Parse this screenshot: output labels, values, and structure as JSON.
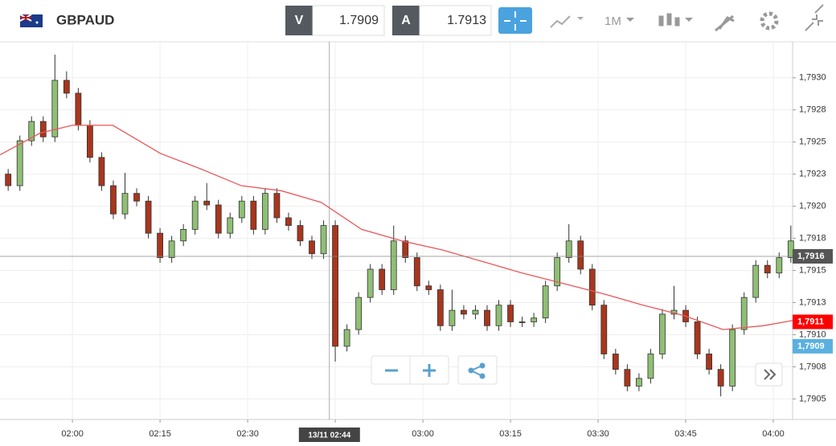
{
  "toolbar": {
    "symbol": "GBPAUD",
    "bid_tag": "V",
    "bid": "1.7909",
    "ask_tag": "A",
    "ask": "1.7913",
    "interval": "1M"
  },
  "chart_data": {
    "type": "candlestick",
    "x": [
      109,
      111,
      113,
      115,
      117,
      119,
      121,
      123,
      125,
      127,
      129,
      131,
      133,
      135,
      137,
      139,
      141,
      143,
      145,
      147,
      149,
      151,
      153,
      155,
      157,
      159,
      161,
      163,
      165,
      167,
      169,
      171,
      173,
      175,
      177,
      179,
      181,
      183,
      185,
      187,
      189,
      191,
      193,
      195,
      197,
      199,
      201,
      203,
      205,
      207,
      209,
      211,
      213,
      215,
      217,
      219,
      221,
      223,
      225,
      227,
      229,
      231,
      233,
      235,
      237,
      239,
      241,
      243
    ],
    "open": [
      1.79225,
      1.79216,
      1.79251,
      1.79266,
      1.79254,
      1.79298,
      1.79288,
      1.79263,
      1.79238,
      1.79216,
      1.79194,
      1.7921,
      1.79204,
      1.79179,
      1.7916,
      1.79173,
      1.79182,
      1.79204,
      1.79201,
      1.79179,
      1.79191,
      1.79204,
      1.79182,
      1.7921,
      1.79191,
      1.79185,
      1.79173,
      1.79163,
      1.79185,
      1.79091,
      1.79104,
      1.79129,
      1.79151,
      1.79135,
      1.79173,
      1.7916,
      1.79138,
      1.79135,
      1.79107,
      1.79119,
      1.79116,
      1.79119,
      1.79107,
      1.79123,
      1.7911,
      1.7911,
      1.79113,
      1.79138,
      1.7916,
      1.79173,
      1.79151,
      1.79123,
      1.79085,
      1.79073,
      1.7906,
      1.79066,
      1.79085,
      1.79116,
      1.79119,
      1.7911,
      1.79085,
      1.79073,
      1.7906,
      1.79104,
      1.79129,
      1.79154,
      1.79148,
      1.7916
    ],
    "high": [
      1.79229,
      1.79255,
      1.7927,
      1.7927,
      1.79318,
      1.79305,
      1.79292,
      1.79267,
      1.79242,
      1.7922,
      1.79226,
      1.79214,
      1.79208,
      1.79183,
      1.79177,
      1.79186,
      1.79208,
      1.79218,
      1.79205,
      1.79195,
      1.79208,
      1.79208,
      1.79214,
      1.79214,
      1.79195,
      1.79189,
      1.79177,
      1.79189,
      1.79189,
      1.79108,
      1.79133,
      1.79155,
      1.79155,
      1.79185,
      1.79177,
      1.79164,
      1.79142,
      1.79139,
      1.79135,
      1.79123,
      1.79123,
      1.79123,
      1.79127,
      1.79127,
      1.79114,
      1.79117,
      1.79142,
      1.79164,
      1.79186,
      1.79177,
      1.79155,
      1.79127,
      1.79089,
      1.79077,
      1.7907,
      1.79089,
      1.7912,
      1.79138,
      1.79123,
      1.79114,
      1.79089,
      1.79077,
      1.79108,
      1.79133,
      1.79158,
      1.79158,
      1.79164,
      1.79185
    ],
    "low": [
      1.79212,
      1.79212,
      1.79247,
      1.7925,
      1.7925,
      1.79284,
      1.79259,
      1.79234,
      1.79212,
      1.7919,
      1.7919,
      1.792,
      1.79175,
      1.79156,
      1.79156,
      1.79169,
      1.79178,
      1.79197,
      1.79175,
      1.79175,
      1.79187,
      1.79178,
      1.79178,
      1.79187,
      1.79181,
      1.79169,
      1.79159,
      1.79159,
      1.79079,
      1.79087,
      1.791,
      1.79125,
      1.79131,
      1.79131,
      1.79156,
      1.79134,
      1.79131,
      1.79103,
      1.79103,
      1.79112,
      1.79112,
      1.79103,
      1.79103,
      1.79106,
      1.79106,
      1.79106,
      1.79109,
      1.79134,
      1.79156,
      1.79147,
      1.79119,
      1.79081,
      1.79069,
      1.79056,
      1.79056,
      1.79062,
      1.79081,
      1.79112,
      1.79106,
      1.79081,
      1.79069,
      1.79052,
      1.79056,
      1.791,
      1.79125,
      1.79144,
      1.79144,
      1.79156
    ],
    "close": [
      1.79216,
      1.79251,
      1.79266,
      1.79254,
      1.79298,
      1.79288,
      1.79263,
      1.79238,
      1.79216,
      1.79194,
      1.7921,
      1.79204,
      1.79179,
      1.7916,
      1.79173,
      1.79182,
      1.79204,
      1.79201,
      1.79179,
      1.79191,
      1.79204,
      1.79182,
      1.7921,
      1.79191,
      1.79185,
      1.79173,
      1.79163,
      1.79185,
      1.79091,
      1.79104,
      1.79129,
      1.79151,
      1.79135,
      1.79173,
      1.7916,
      1.79138,
      1.79135,
      1.79107,
      1.79119,
      1.79116,
      1.79119,
      1.79107,
      1.79123,
      1.7911,
      1.7911,
      1.79113,
      1.79138,
      1.7916,
      1.79173,
      1.79151,
      1.79123,
      1.79085,
      1.79073,
      1.7906,
      1.79066,
      1.79085,
      1.79116,
      1.79119,
      1.7911,
      1.79085,
      1.79073,
      1.7906,
      1.79104,
      1.79129,
      1.79154,
      1.79148,
      1.7916,
      1.79173
    ],
    "up_color": "#8fbf74",
    "down_color": "#a8361d",
    "ma": {
      "color": "#e8575a",
      "x": [
        107.6,
        114.5,
        120,
        126.9,
        135.1,
        142,
        148.9,
        155.8,
        162.6,
        169.5,
        176.4,
        183.3,
        190.2,
        197,
        203.9,
        210.8,
        217.7,
        224.6,
        231.4,
        238.3,
        243.3
      ],
      "values": [
        1.7924,
        1.79257,
        1.79263,
        1.79263,
        1.79241,
        1.79229,
        1.79216,
        1.79212,
        1.79203,
        1.79182,
        1.79173,
        1.79166,
        1.79157,
        1.79148,
        1.7914,
        1.79132,
        1.79123,
        1.79115,
        1.79104,
        1.79107,
        1.79111
      ]
    },
    "xlim": [
      107.6,
      243.3
    ],
    "ylim": [
      1.79034,
      1.79328
    ],
    "xticks": [
      {
        "value": 120,
        "label": "02:00"
      },
      {
        "value": 135,
        "label": "02:15"
      },
      {
        "value": 150,
        "label": "02:30"
      },
      {
        "value": 165,
        "label": "02:45"
      },
      {
        "value": 180,
        "label": "03:00"
      },
      {
        "value": 195,
        "label": "03:15"
      },
      {
        "value": 210,
        "label": "03:30"
      },
      {
        "value": 225,
        "label": "03:45"
      },
      {
        "value": 240,
        "label": "04:00"
      }
    ],
    "yticks": [
      {
        "value": 1.793,
        "label": "1,7930"
      },
      {
        "value": 1.79275,
        "label": "1,7928"
      },
      {
        "value": 1.7925,
        "label": "1,7925"
      },
      {
        "value": 1.79225,
        "label": "1,7923"
      },
      {
        "value": 1.792,
        "label": "1,7920"
      },
      {
        "value": 1.79175,
        "label": "1,7918"
      },
      {
        "value": 1.7915,
        "label": "1,7915"
      },
      {
        "value": 1.79125,
        "label": "1,7913"
      },
      {
        "value": 1.791,
        "label": "1,7910"
      },
      {
        "value": 1.79075,
        "label": "1,7908"
      },
      {
        "value": 1.7905,
        "label": "1,7905"
      }
    ],
    "grid": true,
    "crosshair": {
      "x": 164,
      "x_label": "13/11 02:44",
      "y": {
        "value": 1.79161,
        "label": "1,7916"
      }
    },
    "price_labels": [
      {
        "value": 1.7911,
        "label": "1,7911",
        "color": "#ff0000"
      },
      {
        "value": 1.79091,
        "label": "1,7909",
        "color": "#5ab0e0"
      }
    ]
  }
}
